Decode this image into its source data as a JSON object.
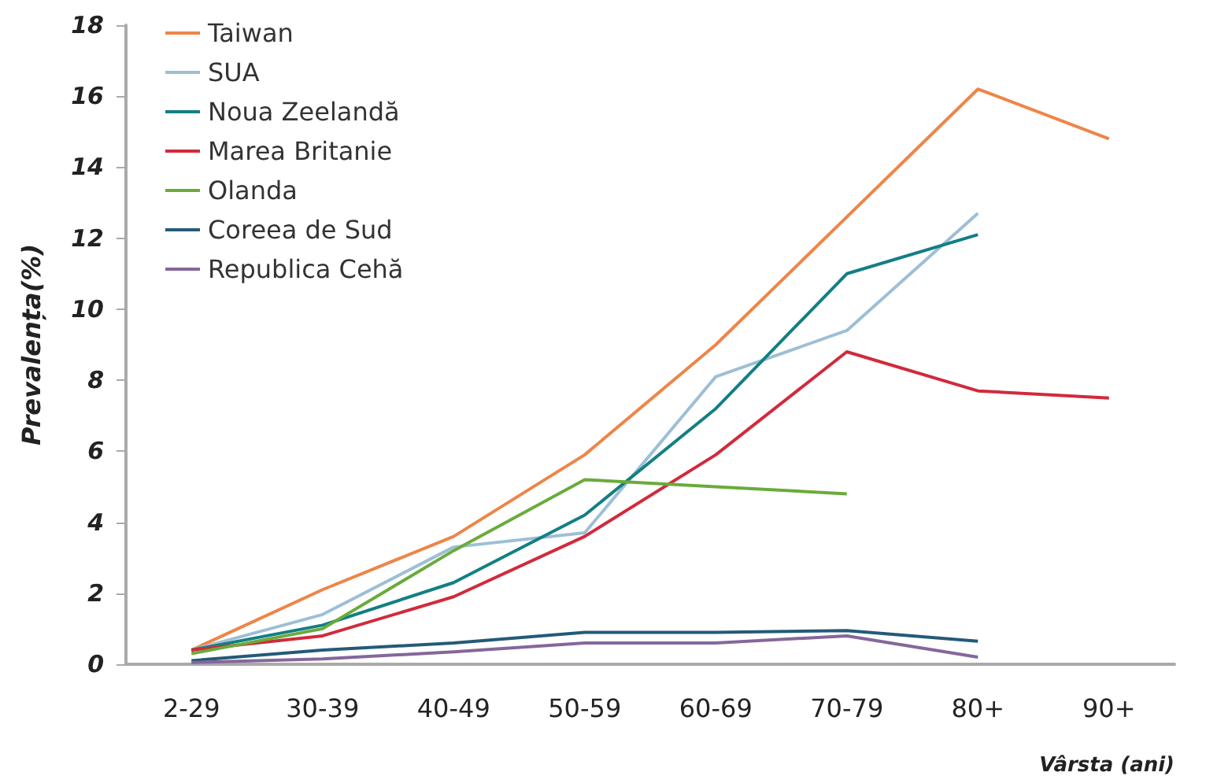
{
  "chart_data": {
    "type": "line",
    "xlabel": "Vârsta (ani)",
    "ylabel": "Prevalența(%)",
    "categories": [
      "2-29",
      "30-39",
      "40-49",
      "50-59",
      "60-69",
      "70-79",
      "80+",
      "90+"
    ],
    "ylim": [
      0,
      18
    ],
    "yticks": [
      0,
      2,
      4,
      6,
      8,
      10,
      12,
      14,
      16,
      18
    ],
    "grid": false,
    "legend": "top left",
    "marker": "none",
    "line_style": "solid",
    "series": [
      {
        "name": "Taiwan",
        "color": "#ee8548",
        "values": [
          0.4,
          2.1,
          3.6,
          5.9,
          9.0,
          12.6,
          16.2,
          14.8
        ]
      },
      {
        "name": "SUA",
        "color": "#9dbfd6",
        "values": [
          0.4,
          1.4,
          3.3,
          3.7,
          8.1,
          9.4,
          12.7,
          null
        ]
      },
      {
        "name": "Noua Zeelandă",
        "color": "#137f84",
        "values": [
          0.4,
          1.1,
          2.3,
          4.2,
          7.2,
          11.0,
          12.1,
          null
        ]
      },
      {
        "name": "Marea Britanie",
        "color": "#d12a3c",
        "values": [
          0.4,
          0.8,
          1.9,
          3.6,
          5.9,
          8.8,
          7.7,
          7.5
        ]
      },
      {
        "name": "Olanda",
        "color": "#6aab3a",
        "values": [
          0.3,
          1.0,
          3.2,
          5.2,
          5.0,
          4.8,
          null,
          null
        ]
      },
      {
        "name": "Coreea de Sud",
        "color": "#245a78",
        "values": [
          0.1,
          0.4,
          0.6,
          0.9,
          0.9,
          0.95,
          0.65,
          null
        ]
      },
      {
        "name": "Republica Cehă",
        "color": "#85679b",
        "values": [
          0.05,
          0.15,
          0.35,
          0.6,
          0.6,
          0.8,
          0.2,
          null
        ]
      }
    ]
  }
}
